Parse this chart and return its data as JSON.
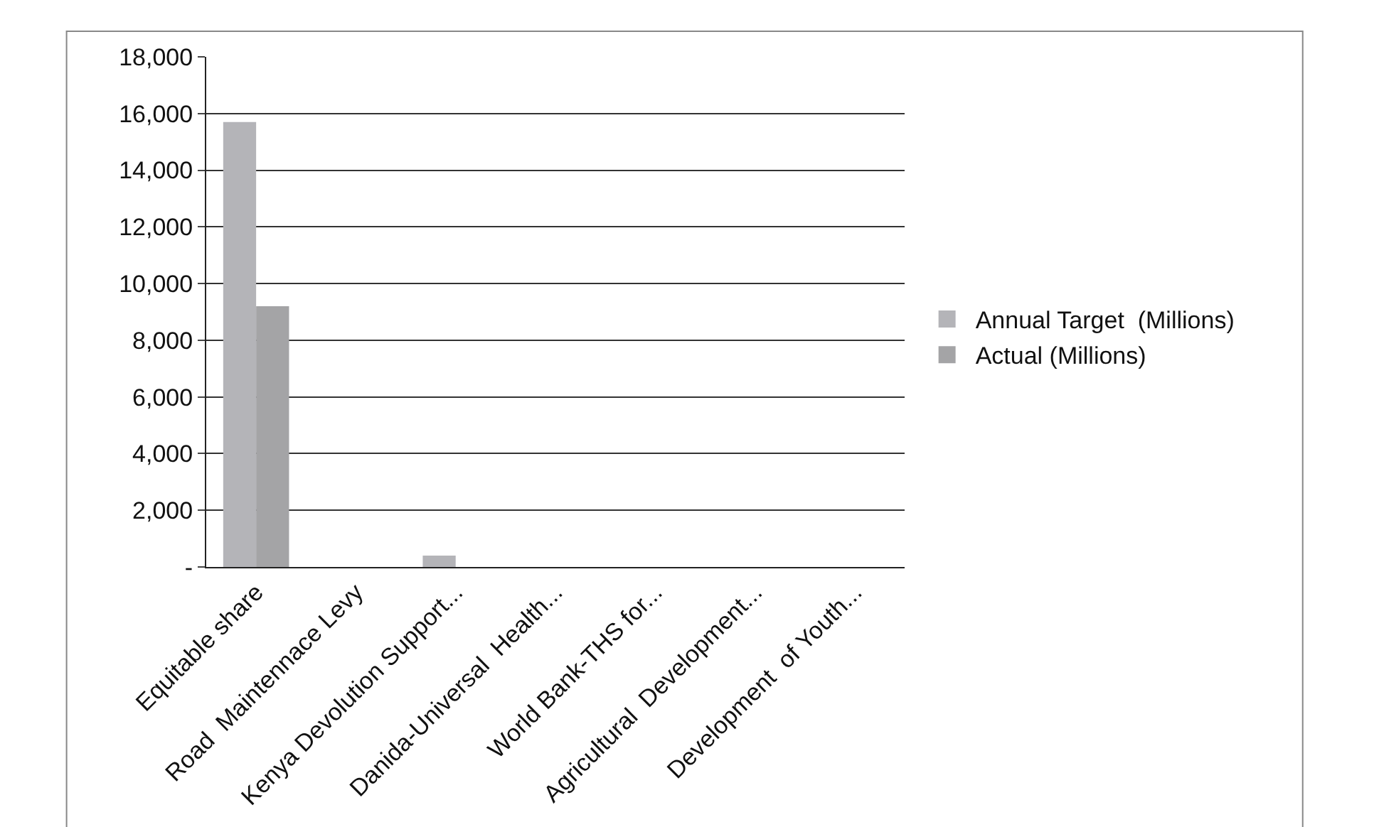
{
  "chart_data": {
    "type": "bar",
    "categories": [
      "Equitable share",
      "Road  Maintennace Levy",
      "Kenya Devolution Support...",
      "Danida-Universal  Health...",
      "World Bank-THS for...",
      "Agricultural  Development...",
      "Development  of Youth..."
    ],
    "series": [
      {
        "name": "Annual Target  (Millions)",
        "color": "#b4b4b8",
        "values": [
          15700,
          null,
          400,
          null,
          0,
          0,
          0
        ]
      },
      {
        "name": "Actual (Millions)",
        "color": "#a4a4a6",
        "values": [
          9200,
          null,
          0,
          0,
          0,
          0,
          0
        ]
      }
    ],
    "ylim": [
      0,
      18000
    ],
    "yticks": [
      {
        "value": 0,
        "label": "-"
      },
      {
        "value": 2000,
        "label": "2,000"
      },
      {
        "value": 4000,
        "label": "4,000"
      },
      {
        "value": 6000,
        "label": "6,000"
      },
      {
        "value": 8000,
        "label": "8,000"
      },
      {
        "value": 10000,
        "label": "10,000"
      },
      {
        "value": 12000,
        "label": "12,000"
      },
      {
        "value": 14000,
        "label": "14,000"
      },
      {
        "value": 16000,
        "label": "16,000"
      },
      {
        "value": 18000,
        "label": "18,000"
      }
    ],
    "grid": "y",
    "legend": "right"
  }
}
